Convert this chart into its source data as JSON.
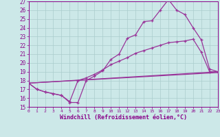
{
  "xlabel": "Windchill (Refroidissement éolien,°C)",
  "bg_color": "#cce8e8",
  "grid_color": "#aacccc",
  "line_color": "#993399",
  "text_color": "#880088",
  "xlim": [
    0,
    23
  ],
  "ylim": [
    15,
    27
  ],
  "xticks": [
    0,
    1,
    2,
    3,
    4,
    5,
    6,
    7,
    8,
    9,
    10,
    11,
    12,
    13,
    14,
    15,
    16,
    17,
    18,
    19,
    20,
    21,
    22,
    23
  ],
  "yticks": [
    15,
    16,
    17,
    18,
    19,
    20,
    21,
    22,
    23,
    24,
    25,
    26,
    27
  ],
  "line1_x": [
    0,
    1,
    2,
    3,
    4,
    5,
    6,
    7,
    8,
    9,
    10,
    11,
    12,
    13,
    14,
    15,
    16,
    17,
    18,
    19,
    20,
    21,
    22,
    23
  ],
  "line1_y": [
    17.7,
    17.0,
    16.7,
    16.5,
    16.3,
    15.5,
    15.5,
    18.0,
    18.5,
    19.1,
    20.4,
    21.0,
    22.8,
    23.2,
    24.7,
    24.8,
    26.0,
    27.2,
    26.0,
    25.5,
    24.0,
    22.6,
    19.3,
    19.0
  ],
  "line2_x": [
    0,
    1,
    2,
    3,
    4,
    5,
    6,
    7,
    8,
    9,
    10,
    11,
    12,
    13,
    14,
    15,
    16,
    17,
    18,
    19,
    20,
    21,
    22,
    23
  ],
  "line2_y": [
    17.7,
    17.0,
    16.7,
    16.5,
    16.3,
    15.6,
    18.0,
    18.3,
    18.7,
    19.2,
    19.8,
    20.2,
    20.6,
    21.1,
    21.4,
    21.7,
    22.0,
    22.3,
    22.4,
    22.5,
    22.7,
    21.2,
    19.0,
    19.0
  ],
  "line3_x": [
    0,
    23
  ],
  "line3_y": [
    17.7,
    19.0
  ],
  "line4_x": [
    0,
    23
  ],
  "line4_y": [
    17.7,
    18.9
  ]
}
